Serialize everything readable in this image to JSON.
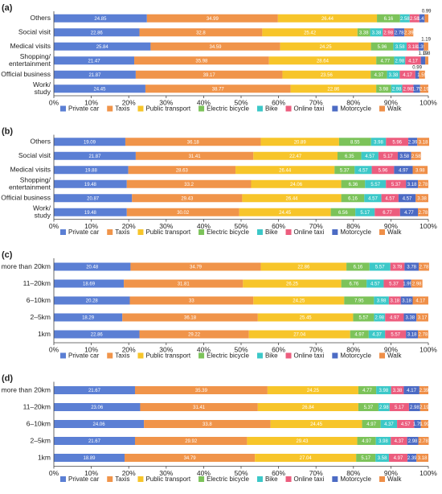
{
  "chart_data": [
    {
      "type": "bar",
      "orientation": "horizontal",
      "stacked": true,
      "panel_label": "(a)",
      "categories": [
        "Others",
        "Social visit",
        "Medical visits",
        "Shopping/entertainment",
        "Official business",
        "Work/study"
      ],
      "series": [
        {
          "name": "Private car",
          "color": "#5b7fd4",
          "values": [
            24.85,
            22.86,
            25.84,
            21.47,
            21.87,
            24.45
          ]
        },
        {
          "name": "Taxis",
          "color": "#f0944a",
          "values": [
            34.99,
            32.8,
            34.59,
            35.98,
            39.17,
            38.77
          ]
        },
        {
          "name": "Public transport",
          "color": "#f7c52a",
          "values": [
            26.44,
            25.42,
            24.25,
            28.64,
            23.56,
            22.86
          ]
        },
        {
          "name": "Electric bicycle",
          "color": "#7cc35a",
          "values": [
            6.16,
            3.38,
            5.96,
            4.77,
            4.37,
            3.98
          ]
        },
        {
          "name": "Bike",
          "color": "#3cc8c8",
          "values": [
            2.58,
            3.38,
            3.58,
            2.98,
            3.38,
            2.98
          ]
        },
        {
          "name": "Online taxi",
          "color": "#ec5d7e",
          "values": [
            2.58,
            2.98,
            3.18,
            4.17,
            4.17,
            2.98
          ]
        },
        {
          "name": "Motorcycle",
          "color": "#4c6bc4",
          "values": [
            1.41,
            2.78,
            1.39,
            1.19,
            0.99,
            1.79
          ]
        },
        {
          "name": "Walk",
          "color": "#ef8f48",
          "values": [
            0.99,
            2.39,
            1.19,
            0.8,
            1.59,
            2.19
          ]
        }
      ],
      "xlim": [
        0,
        100
      ],
      "xticks": [
        {
          "value": 0,
          "label": "0%"
        },
        {
          "value": 10,
          "label": "10%"
        },
        {
          "value": 20,
          "label": "20%"
        },
        {
          "value": 30,
          "label": "30%"
        },
        {
          "value": 40,
          "label": "40%"
        },
        {
          "value": 50,
          "label": "50%"
        },
        {
          "value": 60,
          "label": "60%"
        },
        {
          "value": 70,
          "label": "70%"
        },
        {
          "value": 80,
          "label": "80%"
        },
        {
          "value": 90,
          "label": "90%"
        },
        {
          "value": 100,
          "label": "100%"
        }
      ]
    },
    {
      "type": "bar",
      "orientation": "horizontal",
      "stacked": true,
      "panel_label": "(b)",
      "categories": [
        "Others",
        "Social visit",
        "Medical visits",
        "Shopping/entertainment",
        "Official business",
        "Work/study"
      ],
      "series": [
        {
          "name": "Private car",
          "color": "#5b7fd4",
          "values": [
            19.09,
            21.87,
            19.88,
            19.48,
            20.87,
            19.48
          ]
        },
        {
          "name": "Taxis",
          "color": "#f0944a",
          "values": [
            36.18,
            31.41,
            28.63,
            33.2,
            29.43,
            30.02
          ]
        },
        {
          "name": "Public transport",
          "color": "#f7c52a",
          "values": [
            20.89,
            22.47,
            26.44,
            24.06,
            26.44,
            24.45
          ]
        },
        {
          "name": "Electric bicycle",
          "color": "#7cc35a",
          "values": [
            8.55,
            6.35,
            5.37,
            6.36,
            6.16,
            6.56
          ]
        },
        {
          "name": "Bike",
          "color": "#3cc8c8",
          "values": [
            3.98,
            4.57,
            4.57,
            5.57,
            4.57,
            5.17
          ]
        },
        {
          "name": "Online taxi",
          "color": "#ec5d7e",
          "values": [
            5.96,
            5.17,
            5.96,
            5.37,
            4.57,
            6.77
          ]
        },
        {
          "name": "Motorcycle",
          "color": "#4c6bc4",
          "values": [
            2.39,
            3.58,
            4.97,
            3.18,
            4.57,
            4.77
          ]
        },
        {
          "name": "Walk",
          "color": "#ef8f48",
          "values": [
            3.18,
            2.58,
            3.98,
            2.78,
            3.38,
            2.78
          ]
        }
      ],
      "xlim": [
        0,
        100
      ],
      "xticks": [
        {
          "value": 0,
          "label": "0%"
        },
        {
          "value": 10,
          "label": "10%"
        },
        {
          "value": 20,
          "label": "20%"
        },
        {
          "value": 30,
          "label": "30%"
        },
        {
          "value": 40,
          "label": "40%"
        },
        {
          "value": 50,
          "label": "50%"
        },
        {
          "value": 60,
          "label": "60%"
        },
        {
          "value": 70,
          "label": "70%"
        },
        {
          "value": 80,
          "label": "80%"
        },
        {
          "value": 90,
          "label": "90%"
        },
        {
          "value": 100,
          "label": "100%"
        }
      ]
    },
    {
      "type": "bar",
      "orientation": "horizontal",
      "stacked": true,
      "panel_label": "(c)",
      "categories": [
        "more than 20km",
        "11–20km",
        "6–10km",
        "2–5km",
        "1km"
      ],
      "series": [
        {
          "name": "Private car",
          "color": "#5b7fd4",
          "values": [
            20.48,
            18.69,
            20.28,
            18.29,
            22.86
          ]
        },
        {
          "name": "Taxis",
          "color": "#f0944a",
          "values": [
            34.79,
            31.81,
            33,
            36.18,
            29.22
          ]
        },
        {
          "name": "Public transport",
          "color": "#f7c52a",
          "values": [
            22.86,
            26.25,
            24.25,
            25.45,
            27.04
          ]
        },
        {
          "name": "Electric bicycle",
          "color": "#7cc35a",
          "values": [
            6.16,
            6.76,
            7.95,
            5.57,
            4.97
          ]
        },
        {
          "name": "Bike",
          "color": "#3cc8c8",
          "values": [
            5.57,
            4.57,
            3.98,
            2.98,
            4.37
          ]
        },
        {
          "name": "Online taxi",
          "color": "#ec5d7e",
          "values": [
            3.78,
            5.37,
            3.18,
            4.97,
            5.57
          ]
        },
        {
          "name": "Motorcycle",
          "color": "#4c6bc4",
          "values": [
            3.78,
            1.99,
            3.18,
            3.38,
            3.18
          ]
        },
        {
          "name": "Walk",
          "color": "#ef8f48",
          "values": [
            2.78,
            2.98,
            4.17,
            3.17,
            2.78
          ]
        }
      ],
      "xlim": [
        0,
        100
      ],
      "xticks": [
        {
          "value": 0,
          "label": "0%"
        },
        {
          "value": 10,
          "label": "10%"
        },
        {
          "value": 20,
          "label": "20%"
        },
        {
          "value": 30,
          "label": "30%"
        },
        {
          "value": 40,
          "label": "40%"
        },
        {
          "value": 50,
          "label": "50%"
        },
        {
          "value": 60,
          "label": "60%"
        },
        {
          "value": 70,
          "label": "70%"
        },
        {
          "value": 80,
          "label": "80%"
        },
        {
          "value": 90,
          "label": "90%"
        },
        {
          "value": 100,
          "label": "100%"
        }
      ]
    },
    {
      "type": "bar",
      "orientation": "horizontal",
      "stacked": true,
      "panel_label": "(d)",
      "categories": [
        "more than 20km",
        "11–20km",
        "6–10km",
        "2–5km",
        "1km"
      ],
      "series": [
        {
          "name": "Private car",
          "color": "#5b7fd4",
          "values": [
            21.67,
            23.06,
            24.06,
            21.67,
            18.89
          ]
        },
        {
          "name": "Taxis",
          "color": "#f0944a",
          "values": [
            35.39,
            31.41,
            33.8,
            29.92,
            34.79
          ]
        },
        {
          "name": "Public transport",
          "color": "#f7c52a",
          "values": [
            24.25,
            26.84,
            24.45,
            29.43,
            27.04
          ]
        },
        {
          "name": "Electric bicycle",
          "color": "#7cc35a",
          "values": [
            4.77,
            5.37,
            4.97,
            4.97,
            5.17
          ]
        },
        {
          "name": "Bike",
          "color": "#3cc8c8",
          "values": [
            3.98,
            2.98,
            4.37,
            3.98,
            3.58
          ]
        },
        {
          "name": "Online taxi",
          "color": "#ec5d7e",
          "values": [
            3.38,
            5.17,
            4.57,
            4.37,
            4.97
          ]
        },
        {
          "name": "Motorcycle",
          "color": "#4c6bc4",
          "values": [
            4.17,
            2.98,
            1.79,
            2.98,
            2.39
          ]
        },
        {
          "name": "Walk",
          "color": "#ef8f48",
          "values": [
            2.39,
            2.19,
            1.99,
            2.78,
            3.18
          ]
        }
      ],
      "xlim": [
        0,
        100
      ],
      "xticks": [
        {
          "value": 0,
          "label": "0%"
        },
        {
          "value": 10,
          "label": "10%"
        },
        {
          "value": 20,
          "label": "20%"
        },
        {
          "value": 30,
          "label": "30%"
        },
        {
          "value": 40,
          "label": "40%"
        },
        {
          "value": 50,
          "label": "50%"
        },
        {
          "value": 60,
          "label": "60%"
        },
        {
          "value": 70,
          "label": "70%"
        },
        {
          "value": 80,
          "label": "80%"
        },
        {
          "value": 90,
          "label": "90%"
        },
        {
          "value": 100,
          "label": "100%"
        }
      ]
    }
  ]
}
